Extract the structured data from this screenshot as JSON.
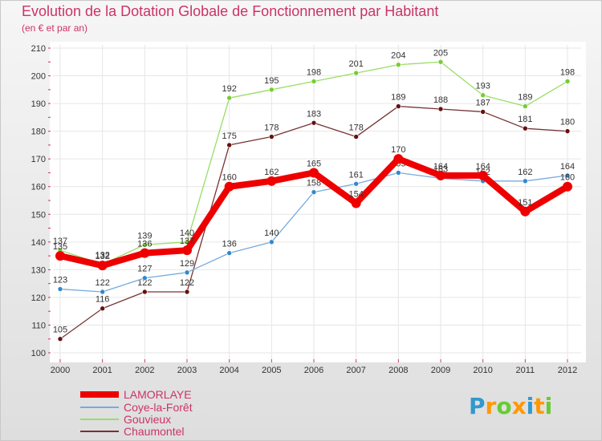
{
  "title": "Evolution de la Dotation Globale de Fonctionnement par Habitant",
  "subtitle": "(en € et par an)",
  "logo": {
    "letters": [
      "P",
      "r",
      "o",
      "x",
      "i",
      "t",
      "i"
    ],
    "colors": [
      "#3399cc",
      "#ff9900",
      "#66cc33",
      "#ff9900",
      "#3399cc",
      "#ff9900",
      "#66cc33"
    ]
  },
  "chart_data": {
    "type": "line",
    "title": "Evolution de la Dotation Globale de Fonctionnement par Habitant",
    "ylabel": "(en € et par an)",
    "xlabel": "",
    "ylim": [
      100,
      210
    ],
    "yticks": [
      "100",
      "110",
      "120",
      "130",
      "140",
      "150",
      "160",
      "170",
      "180",
      "190",
      "200",
      "210"
    ],
    "categories": [
      "2000",
      "2001",
      "2002",
      "2003",
      "2004",
      "2005",
      "2006",
      "2007",
      "2008",
      "2009",
      "2010",
      "2011",
      "2012"
    ],
    "series": [
      {
        "name": "Gouvieux",
        "color": "#99dd66",
        "dot": "#77cc33",
        "values": [
          137,
          132,
          139,
          140,
          192,
          195,
          198,
          201,
          204,
          205,
          193,
          189,
          198
        ],
        "labels": [
          "137",
          "132",
          "139",
          "140",
          "192",
          "195",
          "198",
          "201",
          "204",
          "205",
          "193",
          "189",
          "198"
        ]
      },
      {
        "name": "Chaumontel",
        "color": "#773333",
        "dot": "#661111",
        "values": [
          105,
          116,
          122,
          122,
          175,
          178,
          183,
          178,
          189,
          188,
          187,
          181,
          180
        ],
        "labels": [
          "105",
          "116",
          "122",
          "122",
          "175",
          "178",
          "183",
          "178",
          "189",
          "188",
          "187",
          "181",
          "180"
        ]
      },
      {
        "name": "Coye-la-Forêt",
        "color": "#77aadd",
        "dot": "#3388cc",
        "values": [
          123,
          122,
          127,
          129,
          136,
          140,
          158,
          161,
          165,
          163,
          162,
          162,
          164
        ],
        "labels": [
          "123",
          "122",
          "127",
          "129",
          "136",
          "140",
          "158",
          "161",
          "165",
          "163",
          "162",
          "162",
          "164"
        ]
      },
      {
        "name": "LAMORLAYE",
        "color": "#ee0000",
        "dot": "#ee0000",
        "values": [
          135,
          131.5,
          136,
          137,
          160,
          162,
          165,
          154,
          170,
          164,
          164,
          151,
          160
        ],
        "labels": [
          "135",
          "132",
          "136",
          "137",
          "160",
          "162",
          "165",
          "154",
          "170",
          "164",
          "164",
          "151",
          "160"
        ]
      }
    ]
  },
  "legend": [
    {
      "name": "LAMORLAYE",
      "color": "#ee0000"
    },
    {
      "name": "Coye-la-Forêt",
      "color": "#77aadd"
    },
    {
      "name": "Gouvieux",
      "color": "#99dd66"
    },
    {
      "name": "Chaumontel",
      "color": "#773333"
    }
  ]
}
